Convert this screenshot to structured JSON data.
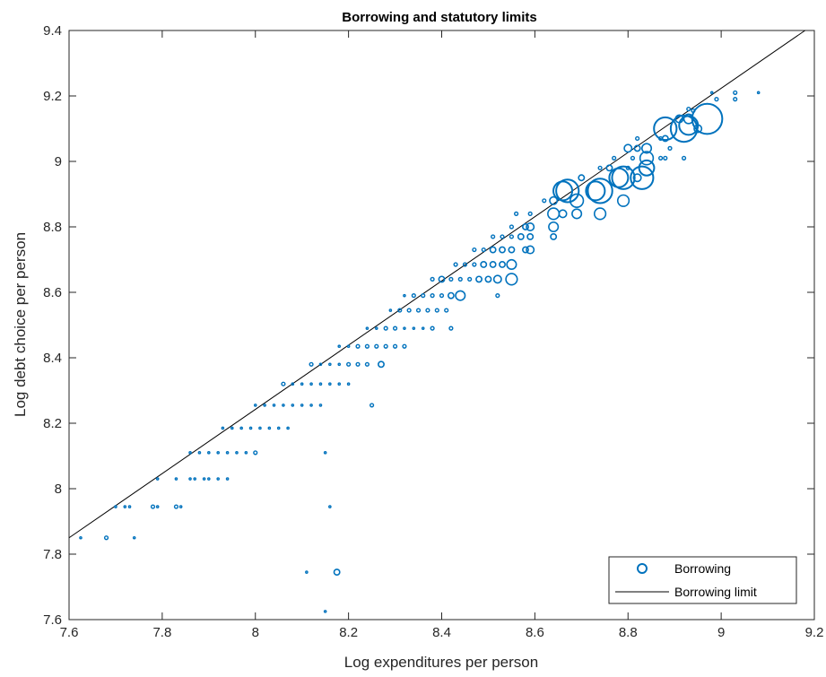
{
  "chart_data": {
    "type": "scatter",
    "title": "Borrowing and statutory limits",
    "xlabel": "Log expenditures per person",
    "ylabel": "Log debt choice per person",
    "xlim": [
      7.6,
      9.2
    ],
    "ylim": [
      7.6,
      9.4
    ],
    "xticks": [
      "7.6",
      "7.8",
      "8",
      "8.2",
      "8.4",
      "8.6",
      "8.8",
      "9",
      "9.2"
    ],
    "yticks": [
      "7.6",
      "7.8",
      "8",
      "8.2",
      "8.4",
      "8.6",
      "8.8",
      "9",
      "9.2",
      "9.4"
    ],
    "grid": false,
    "legend_position": "bottom-right",
    "colors": {
      "scatter": "#0072BD",
      "line": "#000000",
      "axes": "#262626"
    },
    "series": [
      {
        "name": "Borrowing",
        "type": "scatter",
        "marker": "circle",
        "points": [
          [
            7.625,
            7.85,
            1
          ],
          [
            7.68,
            7.85,
            2
          ],
          [
            7.74,
            7.85,
            1
          ],
          [
            7.7,
            7.945,
            1
          ],
          [
            7.72,
            7.945,
            1
          ],
          [
            7.73,
            7.945,
            1
          ],
          [
            7.78,
            7.945,
            2
          ],
          [
            7.79,
            7.945,
            1
          ],
          [
            7.83,
            7.945,
            2
          ],
          [
            7.84,
            7.945,
            1
          ],
          [
            8.16,
            7.945,
            1
          ],
          [
            7.79,
            8.03,
            1
          ],
          [
            7.83,
            8.03,
            1
          ],
          [
            7.86,
            8.03,
            1
          ],
          [
            7.87,
            8.03,
            1
          ],
          [
            7.89,
            8.03,
            1
          ],
          [
            7.9,
            8.03,
            1
          ],
          [
            7.92,
            8.03,
            1
          ],
          [
            7.94,
            8.03,
            1
          ],
          [
            7.86,
            8.11,
            1
          ],
          [
            7.88,
            8.11,
            1
          ],
          [
            7.9,
            8.11,
            1
          ],
          [
            7.92,
            8.11,
            1
          ],
          [
            7.94,
            8.11,
            1
          ],
          [
            7.96,
            8.11,
            1
          ],
          [
            7.98,
            8.11,
            1
          ],
          [
            8.0,
            8.11,
            2
          ],
          [
            8.15,
            8.11,
            1
          ],
          [
            7.93,
            8.185,
            1
          ],
          [
            7.95,
            8.185,
            1
          ],
          [
            7.97,
            8.185,
            1
          ],
          [
            7.99,
            8.185,
            1
          ],
          [
            8.01,
            8.185,
            1
          ],
          [
            8.03,
            8.185,
            1
          ],
          [
            8.05,
            8.185,
            1
          ],
          [
            8.07,
            8.185,
            1
          ],
          [
            8.0,
            8.255,
            1
          ],
          [
            8.02,
            8.255,
            1
          ],
          [
            8.04,
            8.255,
            1
          ],
          [
            8.06,
            8.255,
            1
          ],
          [
            8.08,
            8.255,
            1
          ],
          [
            8.1,
            8.255,
            1
          ],
          [
            8.12,
            8.255,
            1
          ],
          [
            8.14,
            8.255,
            1
          ],
          [
            8.25,
            8.255,
            2
          ],
          [
            8.06,
            8.32,
            2
          ],
          [
            8.08,
            8.32,
            1
          ],
          [
            8.1,
            8.32,
            1
          ],
          [
            8.12,
            8.32,
            1
          ],
          [
            8.14,
            8.32,
            1
          ],
          [
            8.16,
            8.32,
            1
          ],
          [
            8.18,
            8.32,
            1
          ],
          [
            8.2,
            8.32,
            1
          ],
          [
            8.12,
            8.38,
            2
          ],
          [
            8.14,
            8.38,
            1
          ],
          [
            8.16,
            8.38,
            1
          ],
          [
            8.18,
            8.38,
            1
          ],
          [
            8.2,
            8.38,
            2
          ],
          [
            8.22,
            8.38,
            2
          ],
          [
            8.24,
            8.38,
            2
          ],
          [
            8.27,
            8.38,
            3
          ],
          [
            8.18,
            8.435,
            1
          ],
          [
            8.2,
            8.435,
            1
          ],
          [
            8.22,
            8.435,
            2
          ],
          [
            8.24,
            8.435,
            2
          ],
          [
            8.26,
            8.435,
            2
          ],
          [
            8.28,
            8.435,
            2
          ],
          [
            8.3,
            8.435,
            2
          ],
          [
            8.32,
            8.435,
            2
          ],
          [
            8.24,
            8.49,
            1
          ],
          [
            8.26,
            8.49,
            1
          ],
          [
            8.28,
            8.49,
            2
          ],
          [
            8.3,
            8.49,
            2
          ],
          [
            8.32,
            8.49,
            1
          ],
          [
            8.34,
            8.49,
            1
          ],
          [
            8.36,
            8.49,
            1
          ],
          [
            8.38,
            8.49,
            2
          ],
          [
            8.42,
            8.49,
            2
          ],
          [
            8.29,
            8.545,
            1
          ],
          [
            8.31,
            8.545,
            2
          ],
          [
            8.33,
            8.545,
            2
          ],
          [
            8.35,
            8.545,
            2
          ],
          [
            8.37,
            8.545,
            2
          ],
          [
            8.39,
            8.545,
            2
          ],
          [
            8.41,
            8.545,
            2
          ],
          [
            8.32,
            8.59,
            1
          ],
          [
            8.34,
            8.59,
            2
          ],
          [
            8.36,
            8.59,
            2
          ],
          [
            8.38,
            8.59,
            2
          ],
          [
            8.4,
            8.59,
            2
          ],
          [
            8.42,
            8.59,
            3
          ],
          [
            8.44,
            8.59,
            5
          ],
          [
            8.52,
            8.59,
            2
          ],
          [
            8.38,
            8.64,
            2
          ],
          [
            8.4,
            8.64,
            3
          ],
          [
            8.42,
            8.64,
            2
          ],
          [
            8.44,
            8.64,
            2
          ],
          [
            8.46,
            8.64,
            2
          ],
          [
            8.48,
            8.64,
            3
          ],
          [
            8.5,
            8.64,
            3
          ],
          [
            8.52,
            8.64,
            4
          ],
          [
            8.55,
            8.64,
            6
          ],
          [
            8.43,
            8.685,
            2
          ],
          [
            8.45,
            8.685,
            2
          ],
          [
            8.47,
            8.685,
            2
          ],
          [
            8.49,
            8.685,
            3
          ],
          [
            8.51,
            8.685,
            3
          ],
          [
            8.53,
            8.685,
            3
          ],
          [
            8.55,
            8.685,
            5
          ],
          [
            8.47,
            8.73,
            2
          ],
          [
            8.49,
            8.73,
            2
          ],
          [
            8.51,
            8.73,
            3
          ],
          [
            8.53,
            8.73,
            3
          ],
          [
            8.55,
            8.73,
            3
          ],
          [
            8.58,
            8.73,
            3
          ],
          [
            8.59,
            8.73,
            4
          ],
          [
            8.51,
            8.77,
            2
          ],
          [
            8.53,
            8.77,
            2
          ],
          [
            8.55,
            8.77,
            2
          ],
          [
            8.57,
            8.77,
            3
          ],
          [
            8.59,
            8.77,
            3
          ],
          [
            8.64,
            8.77,
            3
          ],
          [
            8.55,
            8.8,
            2
          ],
          [
            8.58,
            8.8,
            3
          ],
          [
            8.59,
            8.8,
            4
          ],
          [
            8.64,
            8.8,
            5
          ],
          [
            8.56,
            8.84,
            2
          ],
          [
            8.59,
            8.84,
            2
          ],
          [
            8.64,
            8.84,
            6
          ],
          [
            8.66,
            8.84,
            4
          ],
          [
            8.69,
            8.84,
            5
          ],
          [
            8.74,
            8.84,
            6
          ],
          [
            8.62,
            8.88,
            2
          ],
          [
            8.64,
            8.88,
            4
          ],
          [
            8.69,
            8.88,
            7
          ],
          [
            8.79,
            8.88,
            6
          ],
          [
            8.66,
            8.91,
            10
          ],
          [
            8.67,
            8.91,
            12
          ],
          [
            8.73,
            8.91,
            10
          ],
          [
            8.74,
            8.91,
            13
          ],
          [
            8.7,
            8.95,
            3
          ],
          [
            8.78,
            8.95,
            10
          ],
          [
            8.79,
            8.95,
            12
          ],
          [
            8.82,
            8.95,
            4
          ],
          [
            8.83,
            8.95,
            12
          ],
          [
            8.74,
            8.98,
            2
          ],
          [
            8.76,
            8.98,
            3
          ],
          [
            8.8,
            8.98,
            2
          ],
          [
            8.84,
            8.98,
            8
          ],
          [
            8.77,
            9.01,
            2
          ],
          [
            8.81,
            9.01,
            2
          ],
          [
            8.84,
            9.01,
            7
          ],
          [
            8.87,
            9.01,
            2
          ],
          [
            8.88,
            9.01,
            2
          ],
          [
            8.92,
            9.01,
            2
          ],
          [
            8.8,
            9.04,
            4
          ],
          [
            8.82,
            9.04,
            3
          ],
          [
            8.84,
            9.04,
            5
          ],
          [
            8.89,
            9.04,
            2
          ],
          [
            8.82,
            9.07,
            2
          ],
          [
            8.87,
            9.07,
            2
          ],
          [
            8.88,
            9.07,
            3
          ],
          [
            8.88,
            9.1,
            12
          ],
          [
            8.92,
            9.1,
            14
          ],
          [
            8.95,
            9.1,
            4
          ],
          [
            8.93,
            9.11,
            10
          ],
          [
            8.91,
            9.13,
            4
          ],
          [
            8.93,
            9.13,
            5
          ],
          [
            8.97,
            9.13,
            16
          ],
          [
            8.93,
            9.16,
            2
          ],
          [
            8.94,
            9.155,
            2
          ],
          [
            8.99,
            9.19,
            2
          ],
          [
            9.03,
            9.19,
            2
          ],
          [
            8.98,
            9.21,
            1
          ],
          [
            9.03,
            9.21,
            2
          ],
          [
            9.08,
            9.21,
            1
          ],
          [
            8.11,
            7.745,
            1
          ],
          [
            8.175,
            7.745,
            3
          ],
          [
            8.15,
            7.625,
            1
          ]
        ]
      },
      {
        "name": "Borrowing limit",
        "type": "line",
        "x": [
          7.6,
          9.18
        ],
        "y": [
          7.85,
          9.4
        ]
      }
    ]
  }
}
